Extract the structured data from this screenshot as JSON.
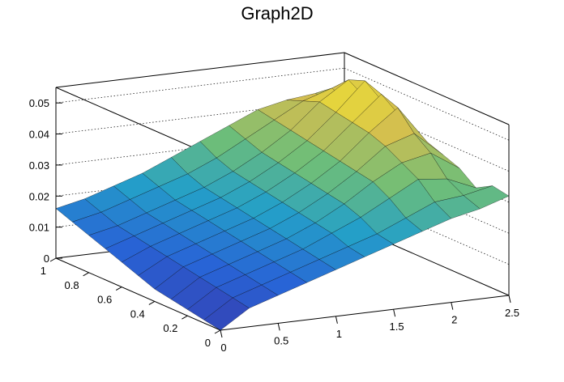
{
  "chart_data": {
    "type": "surface",
    "title": "Graph2D",
    "xlabel": "",
    "ylabel": "",
    "zlabel": "",
    "xlim": [
      0,
      2.5
    ],
    "ylim": [
      0,
      1
    ],
    "zlim": [
      0,
      0.055
    ],
    "x_ticks": [
      "0",
      "0.5",
      "1",
      "1.5",
      "2",
      "2.5"
    ],
    "y_ticks": [
      "0",
      "0.2",
      "0.4",
      "0.6",
      "0.8",
      "1"
    ],
    "z_ticks": [
      "0",
      "0.01",
      "0.02",
      "0.03",
      "0.04",
      "0.05"
    ],
    "grid": true,
    "colormap": "viridis-like",
    "grid_x": [
      0,
      0.25,
      0.5,
      0.75,
      1.0,
      1.25,
      1.5,
      1.75,
      2.0,
      2.25,
      2.5
    ],
    "grid_y": [
      0,
      0.1,
      0.2,
      0.3,
      0.4,
      0.5,
      0.6,
      0.7,
      0.8,
      0.9,
      1.0
    ],
    "z_values": [
      [
        0.0,
        0.006,
        0.009,
        0.012,
        0.015,
        0.018,
        0.021,
        0.024,
        0.027,
        0.029,
        0.032
      ],
      [
        0.001,
        0.007,
        0.01,
        0.013,
        0.016,
        0.019,
        0.022,
        0.026,
        0.03,
        0.031,
        0.033
      ],
      [
        0.002,
        0.008,
        0.011,
        0.014,
        0.017,
        0.021,
        0.025,
        0.03,
        0.035,
        0.034,
        0.03
      ],
      [
        0.003,
        0.009,
        0.012,
        0.015,
        0.018,
        0.022,
        0.027,
        0.033,
        0.038,
        0.04,
        0.034
      ],
      [
        0.004,
        0.01,
        0.013,
        0.016,
        0.019,
        0.023,
        0.028,
        0.034,
        0.041,
        0.044,
        0.036
      ],
      [
        0.006,
        0.011,
        0.014,
        0.017,
        0.02,
        0.024,
        0.029,
        0.035,
        0.043,
        0.05,
        0.038
      ],
      [
        0.008,
        0.012,
        0.015,
        0.018,
        0.021,
        0.025,
        0.03,
        0.036,
        0.044,
        0.052,
        0.04
      ],
      [
        0.01,
        0.013,
        0.016,
        0.019,
        0.022,
        0.026,
        0.031,
        0.037,
        0.045,
        0.054,
        0.042
      ],
      [
        0.012,
        0.014,
        0.017,
        0.02,
        0.023,
        0.027,
        0.032,
        0.038,
        0.046,
        0.052,
        0.041
      ],
      [
        0.014,
        0.016,
        0.019,
        0.022,
        0.025,
        0.029,
        0.034,
        0.039,
        0.044,
        0.047,
        0.038
      ],
      [
        0.016,
        0.018,
        0.021,
        0.024,
        0.028,
        0.032,
        0.036,
        0.04,
        0.042,
        0.043,
        0.036
      ]
    ]
  }
}
